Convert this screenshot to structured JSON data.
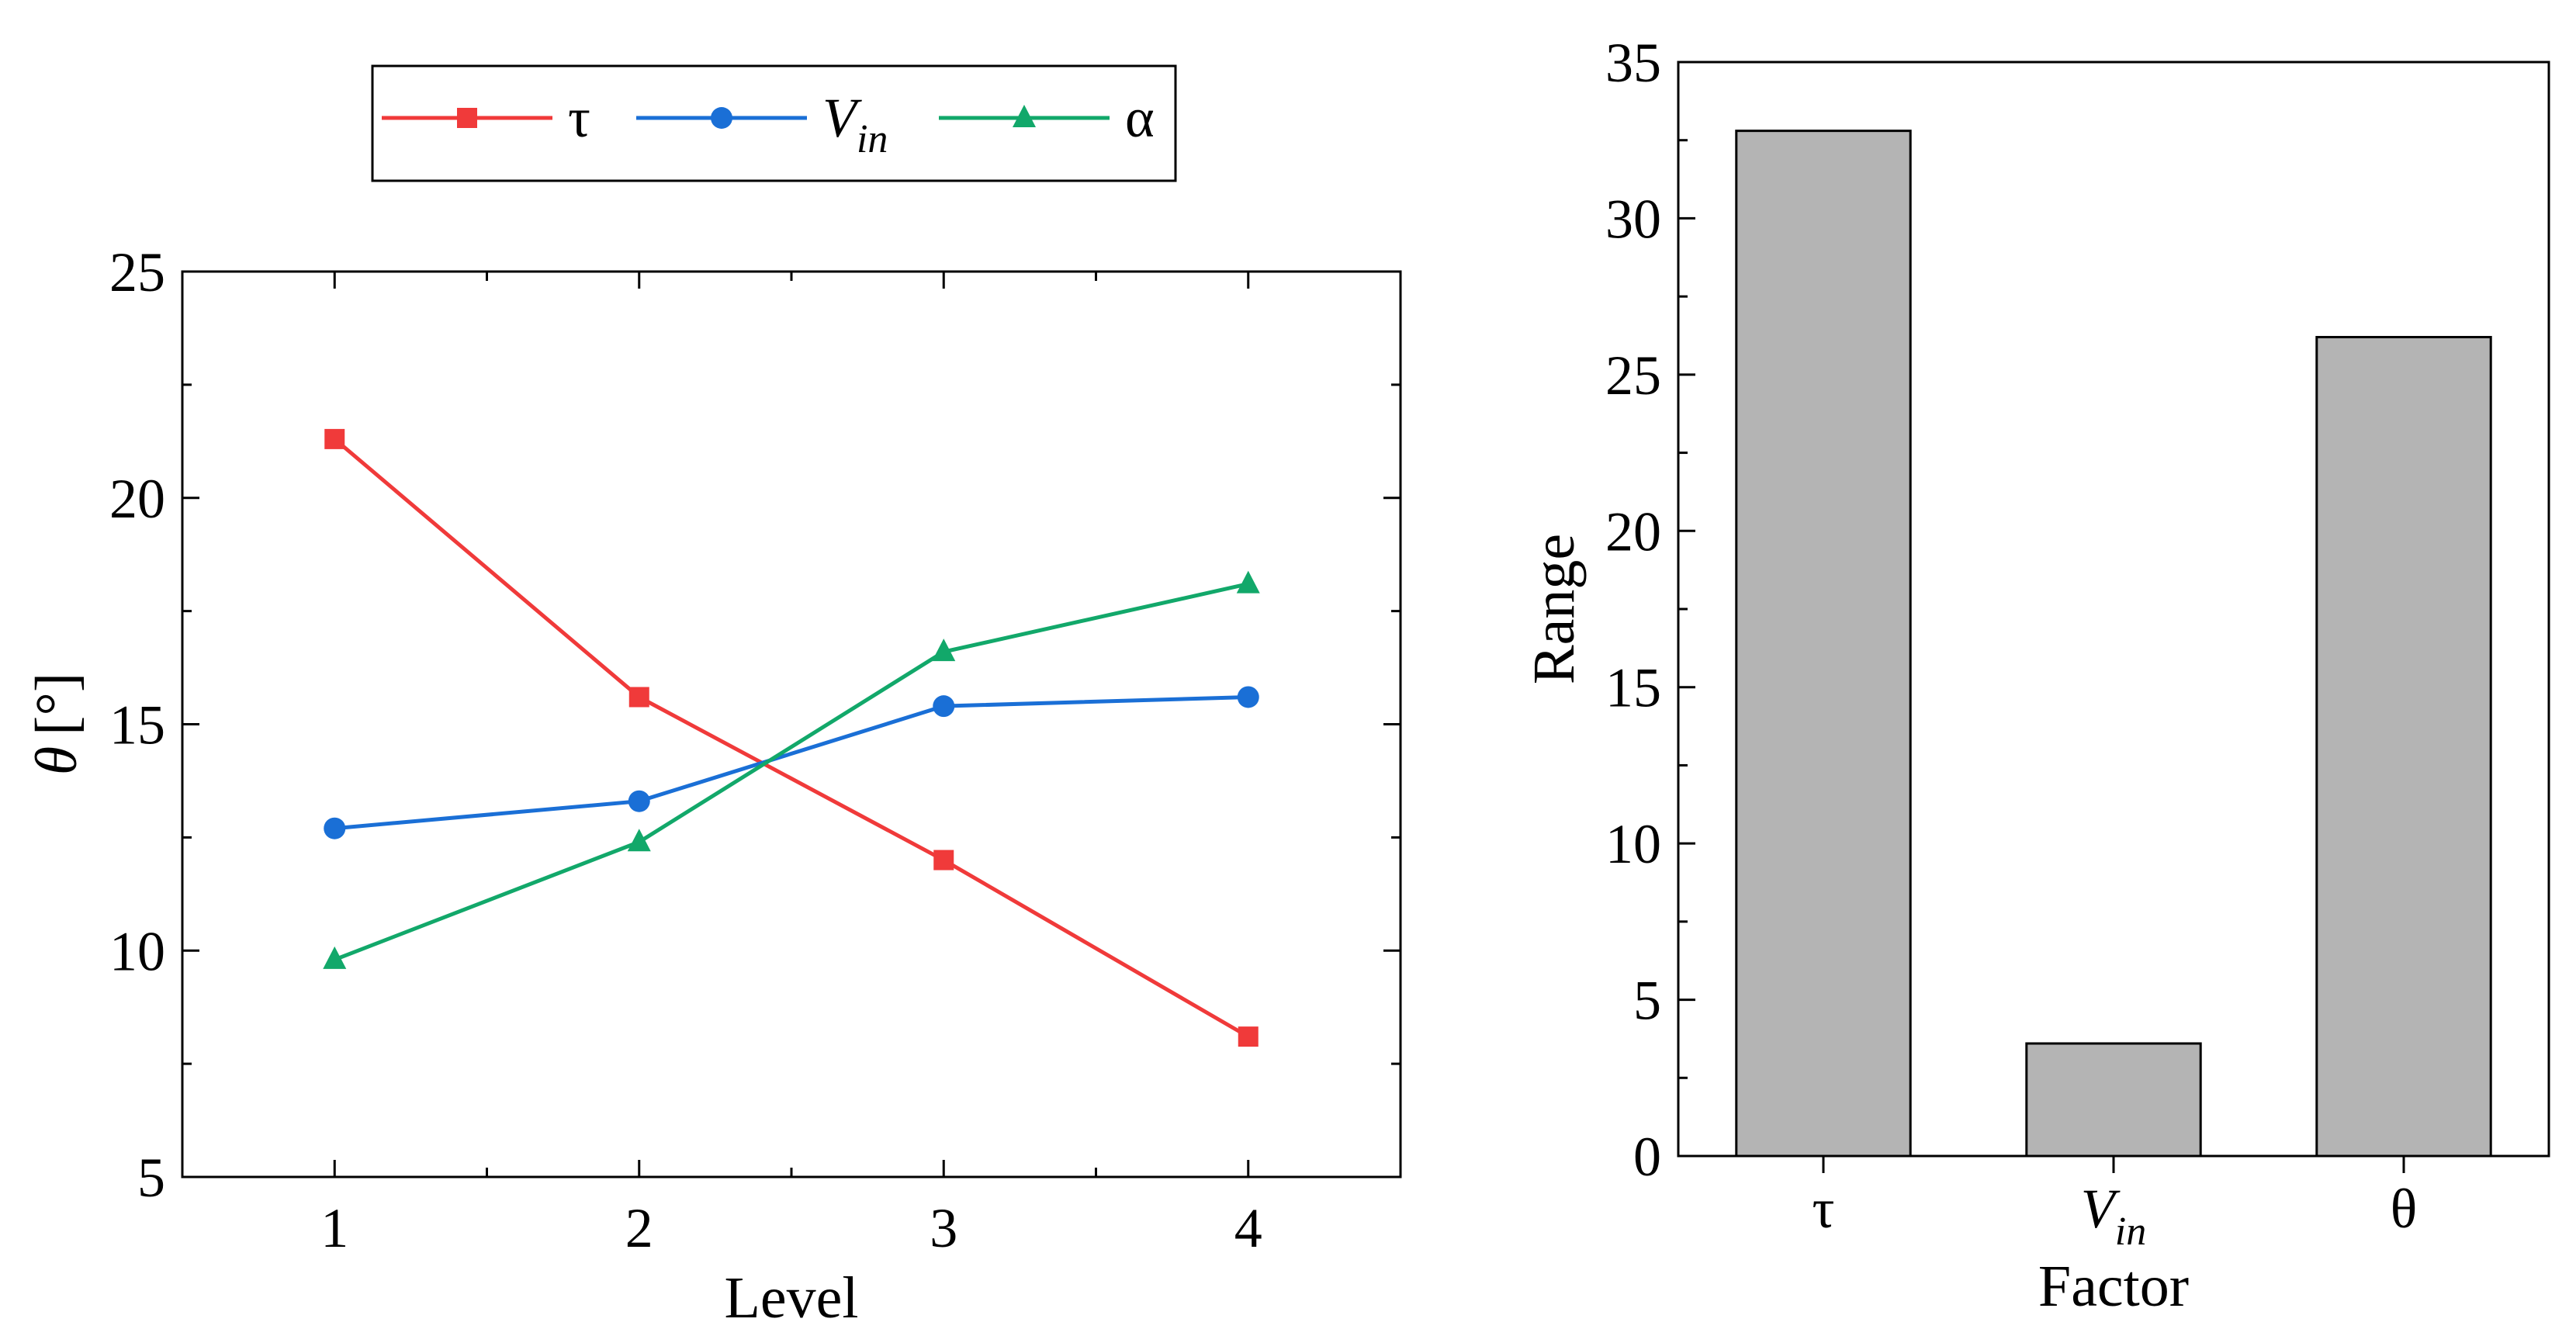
{
  "chart_data": [
    {
      "type": "line",
      "title": "",
      "xlabel": "Level",
      "ylabel_symbol": "θ",
      "ylabel_unit": "[°]",
      "categories": [
        1,
        2,
        3,
        4
      ],
      "xlim": [
        0.5,
        4.5
      ],
      "ylim": [
        5,
        25
      ],
      "yticks": [
        5,
        10,
        15,
        20,
        25
      ],
      "grid": false,
      "legend_position": "top",
      "series": [
        {
          "name": "τ",
          "color": "#f03a3a",
          "marker": "square",
          "values": [
            21.3,
            15.6,
            12.0,
            8.1
          ]
        },
        {
          "name": "V",
          "name_sub": "in",
          "color": "#1a6fd6",
          "marker": "circle",
          "values": [
            12.7,
            13.3,
            15.4,
            15.6
          ]
        },
        {
          "name": "α",
          "color": "#12a86a",
          "marker": "triangle",
          "values": [
            9.8,
            12.4,
            16.6,
            18.1
          ]
        }
      ]
    },
    {
      "type": "bar",
      "title": "",
      "xlabel": "Factor",
      "ylabel": "Range",
      "categories": [
        "τ",
        "V",
        "θ"
      ],
      "category_subscripts": [
        "",
        "in",
        ""
      ],
      "values": [
        32.8,
        3.6,
        26.2
      ],
      "ylim": [
        0,
        35
      ],
      "yticks": [
        0,
        5,
        10,
        15,
        20,
        25,
        30,
        35
      ],
      "bar_color": "#b4b4b4",
      "grid": false
    }
  ]
}
